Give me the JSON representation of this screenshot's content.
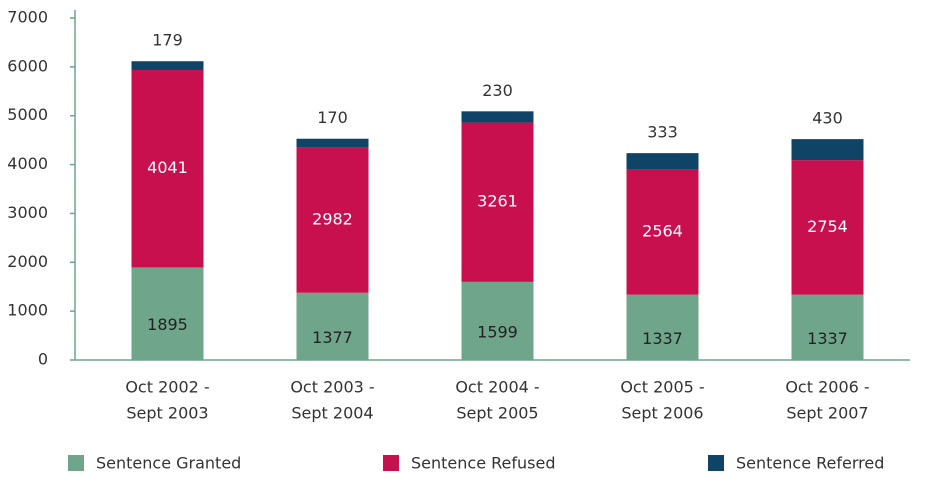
{
  "chart_data": {
    "type": "stacked_bar",
    "categories": [
      [
        "Oct 2002 -",
        "Sept 2003"
      ],
      [
        "Oct 2003 -",
        "Sept 2004"
      ],
      [
        "Oct 2004 -",
        "Sept 2005"
      ],
      [
        "Oct 2005 -",
        "Sept 2006"
      ],
      [
        "Oct 2006 -",
        "Sept 2007"
      ]
    ],
    "series": [
      {
        "name": "Sentence Granted",
        "color": "#6fa58a",
        "label_color": "#222",
        "values": [
          1895,
          1377,
          1599,
          1337,
          1337
        ]
      },
      {
        "name": "Sentence Refused",
        "color": "#c8104f",
        "label_color": "#fff",
        "values": [
          4041,
          2982,
          3261,
          2564,
          2754
        ]
      },
      {
        "name": "Sentence Referred",
        "color": "#0f4466",
        "label_color": "#333",
        "values": [
          179,
          170,
          230,
          333,
          430
        ]
      }
    ],
    "ylim": [
      0,
      7000
    ],
    "yticks": [
      0,
      1000,
      2000,
      3000,
      4000,
      5000,
      6000,
      7000
    ]
  }
}
